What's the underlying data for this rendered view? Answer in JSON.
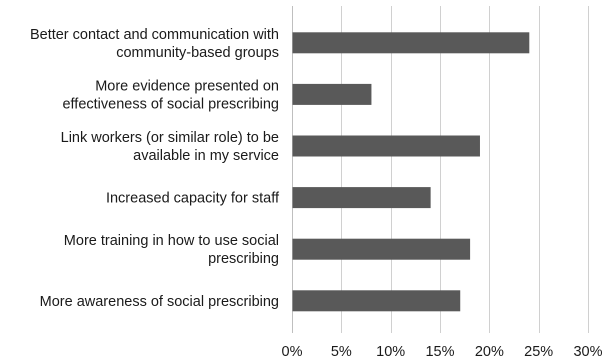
{
  "chart_data": {
    "type": "bar",
    "orientation": "horizontal",
    "categories": [
      [
        "Better contact and communication with",
        "community-based groups"
      ],
      [
        "More evidence presented on",
        "effectiveness of social prescribing"
      ],
      [
        "Link workers (or similar role) to be",
        "available in my service"
      ],
      [
        "Increased capacity for staff"
      ],
      [
        "More training in how to use social",
        "prescribing"
      ],
      [
        "More awareness of social prescribing"
      ]
    ],
    "values": [
      24,
      8,
      19,
      14,
      18,
      17
    ],
    "unit": "%",
    "xlim": [
      0,
      30
    ],
    "xticks": [
      0,
      5,
      10,
      15,
      20,
      25,
      30
    ],
    "tick_labels": [
      "0%",
      "5%",
      "10%",
      "15%",
      "20%",
      "25%",
      "30%"
    ],
    "grid": true,
    "legend": "none",
    "bar_color": "#595959"
  }
}
